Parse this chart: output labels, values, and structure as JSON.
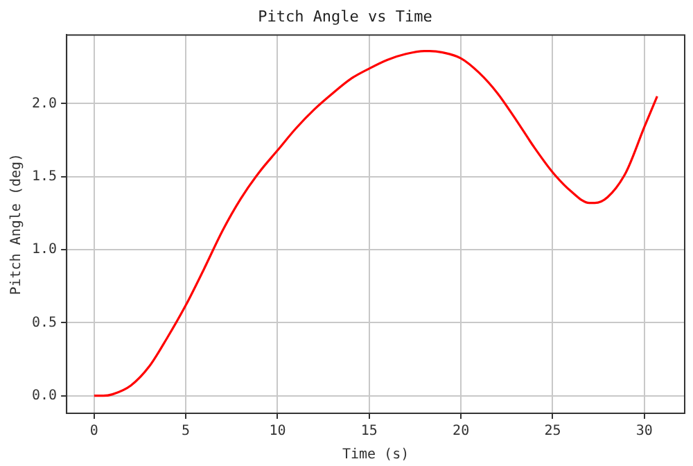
{
  "chart_data": {
    "type": "line",
    "title": "Pitch Angle vs Time",
    "xlabel": "Time (s)",
    "ylabel": "Pitch Angle (deg)",
    "x": [
      0,
      0.5,
      1,
      2,
      3,
      4,
      5,
      6,
      7,
      8,
      9,
      10,
      11,
      12,
      13,
      14,
      15,
      16,
      17,
      18,
      18.3,
      19,
      20,
      21,
      22,
      23,
      24,
      25,
      26,
      27,
      27.3,
      28,
      29,
      30,
      30.7
    ],
    "series": [
      {
        "color": "#ff0000",
        "values": [
          0,
          0,
          0.01,
          0.07,
          0.2,
          0.4,
          0.62,
          0.87,
          1.13,
          1.35,
          1.53,
          1.68,
          1.83,
          1.96,
          2.07,
          2.17,
          2.24,
          2.3,
          2.34,
          2.36,
          2.36,
          2.35,
          2.31,
          2.21,
          2.07,
          1.89,
          1.7,
          1.53,
          1.4,
          1.32,
          1.32,
          1.36,
          1.53,
          1.84,
          2.05
        ]
      }
    ],
    "xlim": [
      -1.5,
      32.2
    ],
    "ylim": [
      -0.12,
      2.47
    ],
    "xticks": [
      0,
      5,
      10,
      15,
      20,
      25,
      30
    ],
    "yticks": [
      {
        "value": 0,
        "label": "0.0"
      },
      {
        "value": 0.5,
        "label": "0.5"
      },
      {
        "value": 1,
        "label": "1.0"
      },
      {
        "value": 1.5,
        "label": "1.5"
      },
      {
        "value": 2,
        "label": "2.0"
      }
    ],
    "grid": true,
    "legend": false,
    "marker": "none",
    "line_style": "solid"
  }
}
